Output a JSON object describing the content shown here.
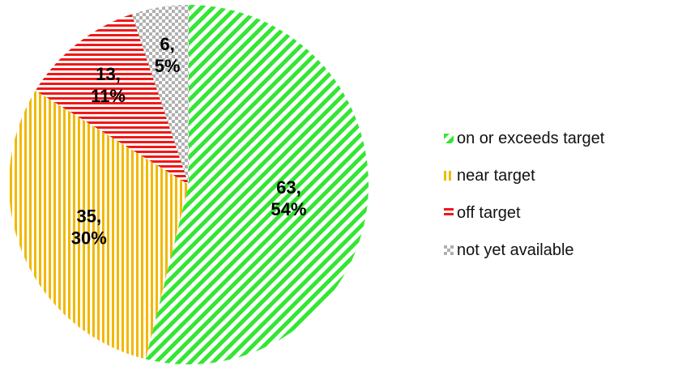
{
  "chart_data": {
    "type": "pie",
    "slices": [
      {
        "label": "on or exceeds target",
        "value": 63,
        "percent": "54%",
        "color": "#33e633",
        "pattern": "diagonal-stripes",
        "pattern_name": "pattern-on-target",
        "display": "63,|54%"
      },
      {
        "label": "near target",
        "value": 35,
        "percent": "30%",
        "color": "#f2b800",
        "pattern": "vertical-stripes",
        "pattern_name": "pattern-near-target",
        "display": "35,|30%"
      },
      {
        "label": "off target",
        "value": 13,
        "percent": "11%",
        "color": "#f01818",
        "pattern": "horizontal-stripes",
        "pattern_name": "pattern-off-target",
        "display": "13,|11%"
      },
      {
        "label": "not yet available",
        "value": 6,
        "percent": "5%",
        "color": "#b0b0b0",
        "pattern": "checkerboard",
        "pattern_name": "pattern-not-available",
        "display": "6,|5%"
      }
    ],
    "legend_position": "right"
  }
}
